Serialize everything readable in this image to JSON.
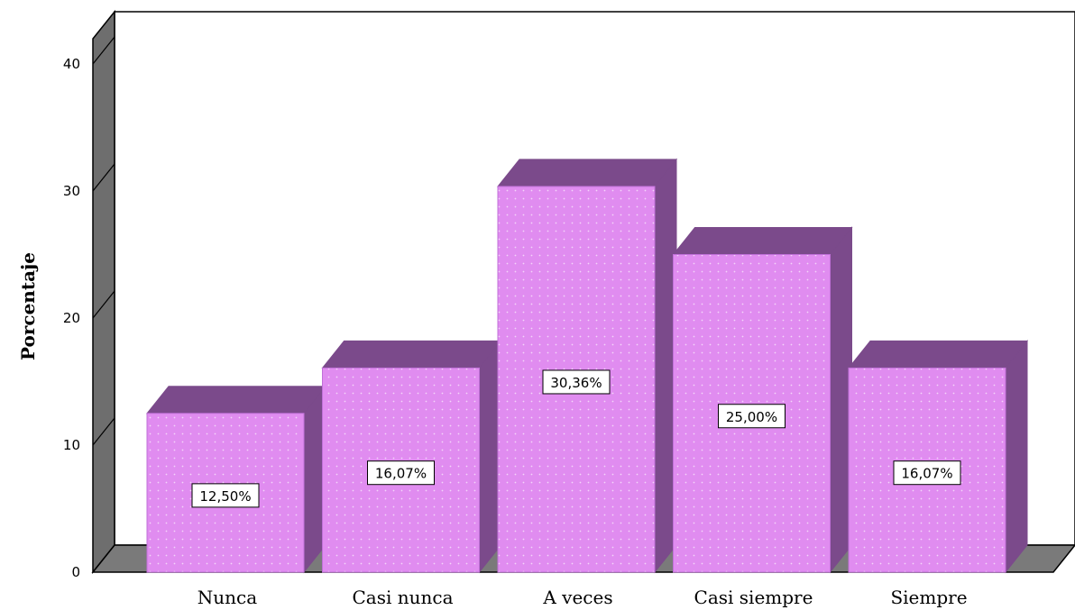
{
  "chart_data": {
    "type": "bar",
    "categories": [
      "Nunca",
      "Casi nunca",
      "A veces",
      "Casi siempre",
      "Siempre"
    ],
    "values": [
      12.5,
      16.07,
      30.36,
      25.0,
      16.07
    ],
    "data_labels": [
      "12,50%",
      "16,07%",
      "30,36%",
      "25,00%",
      "16,07%"
    ],
    "title": "",
    "xlabel": "",
    "ylabel": "Porcentaje",
    "ylim": [
      0,
      40
    ],
    "yticks": [
      0,
      10,
      20,
      30,
      40
    ],
    "grid": false,
    "legend": "none",
    "style": "3d",
    "colors": {
      "bar_front": "#e08cf0",
      "bar_top": "#7b4a8b",
      "bar_side": "#7b4a8b",
      "dots": "#f4d4fa",
      "wall": "#6e6e6e",
      "floor": "#7a7a7a",
      "plot_bg": "#ffffff",
      "label_box": "#ffffff"
    }
  }
}
